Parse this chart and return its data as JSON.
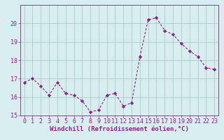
{
  "x": [
    0,
    1,
    2,
    3,
    4,
    5,
    6,
    7,
    8,
    9,
    10,
    11,
    12,
    13,
    14,
    15,
    16,
    17,
    18,
    19,
    20,
    21,
    22,
    23
  ],
  "y": [
    16.8,
    17.0,
    16.6,
    16.1,
    16.8,
    16.2,
    16.1,
    15.8,
    15.2,
    15.3,
    16.1,
    16.2,
    15.5,
    15.7,
    18.2,
    20.2,
    20.3,
    19.6,
    19.4,
    18.9,
    18.5,
    18.2,
    17.6,
    17.5
  ],
  "line_color": "#882288",
  "marker": "D",
  "marker_size": 2.2,
  "bg_color": "#d8eeee",
  "grid_color": "#aacccc",
  "axis_color": "#882288",
  "xlabel": "Windchill (Refroidissement éolien,°C)",
  "ylim": [
    15,
    21
  ],
  "xlim": [
    -0.5,
    23.5
  ],
  "yticks": [
    15,
    16,
    17,
    18,
    19,
    20
  ],
  "xticks": [
    0,
    1,
    2,
    3,
    4,
    5,
    6,
    7,
    8,
    9,
    10,
    11,
    12,
    13,
    14,
    15,
    16,
    17,
    18,
    19,
    20,
    21,
    22,
    23
  ],
  "label_fontsize": 6.5,
  "tick_fontsize": 6.0
}
